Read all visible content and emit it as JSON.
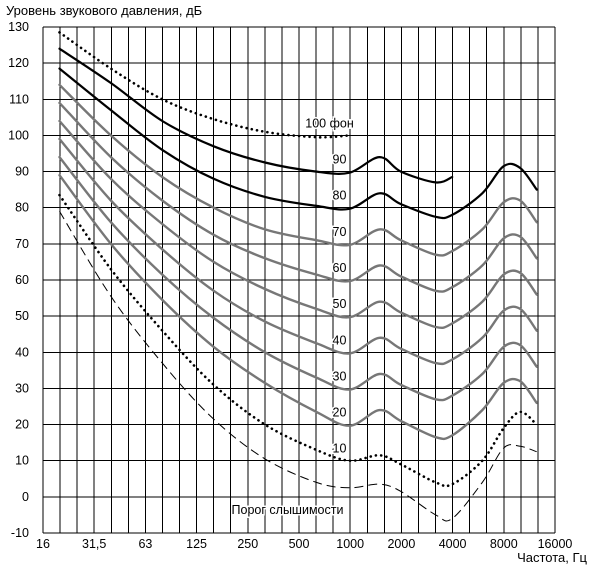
{
  "chart_data": {
    "type": "line",
    "ylabel": "Уровень звукового давления, дБ",
    "xlabel": "Частота, Гц",
    "x_scale": "log2",
    "xlim": [
      16,
      16000
    ],
    "ylim": [
      -10,
      130
    ],
    "x_ticks": [
      "16",
      "31,5",
      "63",
      "125",
      "250",
      "500",
      "1000",
      "2000",
      "4000",
      "8000",
      "16000"
    ],
    "y_ticks": [
      "130",
      "120",
      "110",
      "100",
      "90",
      "80",
      "70",
      "60",
      "50",
      "40",
      "30",
      "20",
      "10",
      "0",
      "-10"
    ],
    "grid": true,
    "series": [
      {
        "name": "100 фон",
        "style": "dotted",
        "color": "#000000",
        "x": [
          20,
          40,
          80,
          160,
          320,
          640,
          1000
        ],
        "y": [
          128.5,
          118.5,
          110,
          104.5,
          101,
          99.5,
          100
        ]
      },
      {
        "name": "90",
        "style": "solid",
        "color": "#000000",
        "x": [
          20,
          40,
          80,
          160,
          320,
          640,
          1000,
          1500,
          2000,
          3200,
          4000
        ],
        "y": [
          124,
          114.5,
          104,
          97,
          92.5,
          90,
          89.7,
          94,
          90,
          87,
          88.5
        ]
      },
      {
        "name": "80",
        "style": "solid",
        "color": "#000000",
        "x": [
          20,
          40,
          80,
          160,
          320,
          640,
          1000,
          1500,
          2000,
          3200,
          4000,
          6000,
          8000,
          10000,
          12500
        ],
        "y": [
          118.5,
          107,
          96,
          88,
          83,
          80.5,
          79.7,
          84,
          81,
          77.5,
          78,
          84,
          91.5,
          91,
          85
        ]
      },
      {
        "name": "70",
        "style": "solid",
        "color": "#777777",
        "x": [
          20,
          40,
          80,
          160,
          320,
          640,
          1000,
          1500,
          2000,
          3200,
          4000,
          6000,
          8000,
          10000,
          12500
        ],
        "y": [
          114,
          100,
          88.5,
          80,
          74,
          71,
          69.7,
          74,
          71,
          67,
          68,
          74,
          81.5,
          82,
          76
        ]
      },
      {
        "name": "60",
        "style": "solid",
        "color": "#777777",
        "x": [
          20,
          40,
          80,
          160,
          320,
          640,
          1000,
          1500,
          2000,
          3200,
          4000,
          6000,
          8000,
          10000,
          12500
        ],
        "y": [
          109,
          94,
          82,
          72.5,
          66,
          61.5,
          59.7,
          64,
          61,
          57,
          58,
          64,
          71.5,
          72,
          66
        ]
      },
      {
        "name": "50",
        "style": "solid",
        "color": "#777777",
        "x": [
          20,
          40,
          80,
          160,
          320,
          640,
          1000,
          1500,
          2000,
          3200,
          4000,
          6000,
          8000,
          10000,
          12500
        ],
        "y": [
          104,
          88,
          75.5,
          65,
          57.5,
          52,
          49.7,
          54,
          51,
          47,
          48,
          54,
          61.5,
          62,
          56
        ]
      },
      {
        "name": "40",
        "style": "solid",
        "color": "#777777",
        "x": [
          20,
          40,
          80,
          160,
          320,
          640,
          1000,
          1500,
          2000,
          3200,
          4000,
          6000,
          8000,
          10000,
          12500
        ],
        "y": [
          99,
          82,
          68.5,
          57,
          48.5,
          42.5,
          39.7,
          44,
          41,
          37,
          38,
          44,
          51.5,
          52,
          46
        ]
      },
      {
        "name": "30",
        "style": "solid",
        "color": "#777777",
        "x": [
          20,
          40,
          80,
          160,
          320,
          640,
          1000,
          1500,
          2000,
          3200,
          4000,
          6000,
          8000,
          10000,
          12500
        ],
        "y": [
          94,
          76,
          61.5,
          49.5,
          40,
          33,
          29.7,
          34,
          31,
          27,
          28,
          34,
          41.5,
          42,
          36
        ]
      },
      {
        "name": "20",
        "style": "solid",
        "color": "#777777",
        "x": [
          20,
          40,
          80,
          160,
          320,
          640,
          1000,
          1500,
          2000,
          3200,
          4000,
          6000,
          8000,
          10000,
          12500
        ],
        "y": [
          89,
          70,
          54.5,
          41.5,
          31.5,
          23.5,
          19.7,
          24,
          21,
          16.5,
          17,
          24,
          31.5,
          32,
          26
        ]
      },
      {
        "name": "10",
        "style": "dotted",
        "color": "#000000",
        "x": [
          20,
          40,
          80,
          160,
          320,
          640,
          1000,
          1500,
          2000,
          3200,
          4000,
          6000,
          8000,
          10000,
          12500
        ],
        "y": [
          83.5,
          63,
          46,
          31,
          20,
          13,
          10,
          11.5,
          9,
          4,
          3.5,
          10,
          19,
          23.5,
          20
        ]
      },
      {
        "name": "Порог слышимости",
        "style": "dashed",
        "color": "#000000",
        "x": [
          20,
          40,
          80,
          160,
          320,
          640,
          1000,
          1500,
          2000,
          3200,
          4000,
          6000,
          8000,
          10000,
          12500
        ],
        "y": [
          79,
          55.5,
          37,
          21.5,
          10.5,
          4,
          2.5,
          3.5,
          1.5,
          -5,
          -6,
          4,
          13.5,
          14,
          12.5
        ]
      }
    ],
    "labels": [
      {
        "text": "100 фон",
        "x": 1000,
        "y": 100
      },
      {
        "text": "90",
        "x": 1000,
        "y": 90
      },
      {
        "text": "80",
        "x": 1000,
        "y": 80
      },
      {
        "text": "70",
        "x": 1000,
        "y": 70
      },
      {
        "text": "60",
        "x": 1000,
        "y": 60
      },
      {
        "text": "50",
        "x": 1000,
        "y": 50
      },
      {
        "text": "40",
        "x": 1000,
        "y": 40
      },
      {
        "text": "30",
        "x": 1000,
        "y": 30
      },
      {
        "text": "20",
        "x": 1000,
        "y": 20
      },
      {
        "text": "10",
        "x": 1000,
        "y": 10
      },
      {
        "text": "Порог слышимости",
        "x": 1000,
        "y": 0
      }
    ]
  }
}
